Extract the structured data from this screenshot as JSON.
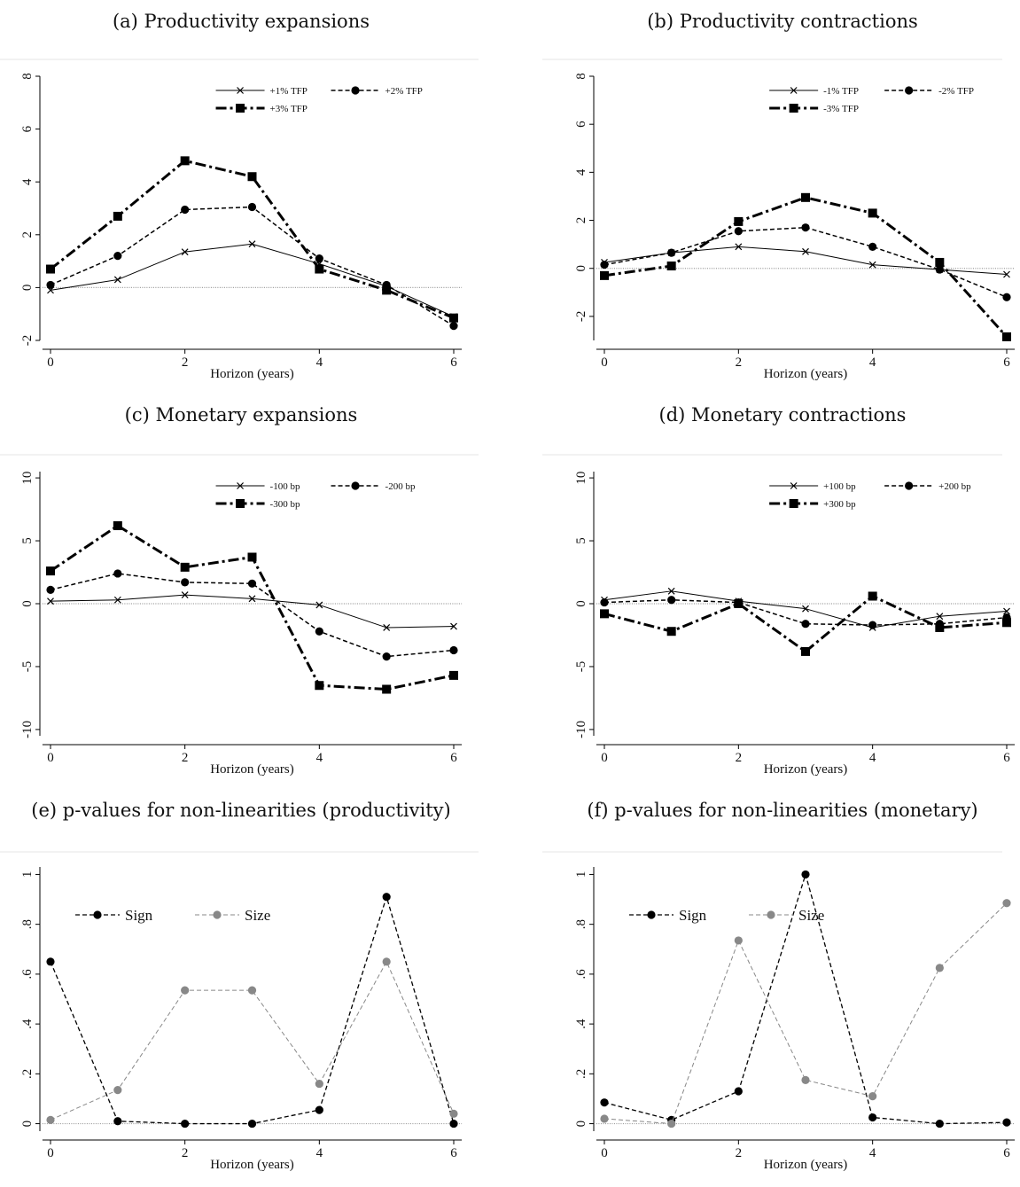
{
  "figure": {
    "panels": [
      {
        "label": "(a) Productivity expansions"
      },
      {
        "label": "(b) Productivity contractions"
      },
      {
        "label": "(c) Monetary expansions"
      },
      {
        "label": "(d) Monetary contractions"
      },
      {
        "label": "(e) p-values for non-linearities (productivity)"
      },
      {
        "label": "(f) p-values for non-linearities (monetary)"
      }
    ]
  },
  "chart_data": [
    {
      "type": "line",
      "title": "(a) Productivity expansions",
      "xlabel": "Horizon (years)",
      "ylabel": "",
      "x": [
        0,
        1,
        2,
        3,
        4,
        5,
        6
      ],
      "xlim": [
        0,
        6
      ],
      "ylim": [
        -2,
        8
      ],
      "xticks": [
        0,
        2,
        4,
        6
      ],
      "yticks": [
        -2,
        0,
        2,
        4,
        6,
        8
      ],
      "ytick_labels": [
        "-2",
        "0",
        "2",
        "4",
        "6",
        "8"
      ],
      "grid": false,
      "zero_line": true,
      "legend": "top-right",
      "series": [
        {
          "name": "+1% TFP",
          "values": [
            -0.1,
            0.3,
            1.35,
            1.65,
            0.9,
            0.05,
            -1.1
          ],
          "style": "thin-x",
          "color": "#000000"
        },
        {
          "name": "+2% TFP",
          "values": [
            0.1,
            1.2,
            2.95,
            3.05,
            1.1,
            0.1,
            -1.45
          ],
          "style": "dash-circle",
          "color": "#000000"
        },
        {
          "name": "+3% TFP",
          "values": [
            0.7,
            2.7,
            4.8,
            4.2,
            0.7,
            -0.1,
            -1.15
          ],
          "style": "thick-square",
          "color": "#000000"
        }
      ]
    },
    {
      "type": "line",
      "title": "(b) Productivity contractions",
      "xlabel": "Horizon (years)",
      "ylabel": "",
      "x": [
        0,
        1,
        2,
        3,
        4,
        5,
        6
      ],
      "xlim": [
        0,
        6
      ],
      "ylim": [
        -3,
        8
      ],
      "xticks": [
        0,
        2,
        4,
        6
      ],
      "yticks": [
        -2,
        0,
        2,
        4,
        6,
        8
      ],
      "ytick_labels": [
        "-2",
        "0",
        "2",
        "4",
        "6",
        "8"
      ],
      "grid": false,
      "zero_line": true,
      "legend": "top-right",
      "series": [
        {
          "name": "-1% TFP",
          "values": [
            0.25,
            0.65,
            0.9,
            0.7,
            0.15,
            -0.05,
            -0.25
          ],
          "style": "thin-x",
          "color": "#000000"
        },
        {
          "name": "-2% TFP",
          "values": [
            0.15,
            0.65,
            1.55,
            1.7,
            0.9,
            -0.05,
            -1.2
          ],
          "style": "dash-circle",
          "color": "#000000"
        },
        {
          "name": "-3% TFP",
          "values": [
            -0.3,
            0.1,
            1.95,
            2.95,
            2.3,
            0.25,
            -2.85
          ],
          "style": "thick-square",
          "color": "#000000"
        }
      ]
    },
    {
      "type": "line",
      "title": "(c) Monetary expansions",
      "xlabel": "Horizon (years)",
      "ylabel": "",
      "x": [
        0,
        1,
        2,
        3,
        4,
        5,
        6
      ],
      "xlim": [
        0,
        6
      ],
      "ylim": [
        -10.5,
        10.5
      ],
      "xticks": [
        0,
        2,
        4,
        6
      ],
      "yticks": [
        -10,
        -5,
        0,
        5,
        10
      ],
      "ytick_labels": [
        "-10",
        "-5",
        "0",
        "5",
        "10"
      ],
      "grid": false,
      "zero_line": true,
      "legend": "top-right",
      "series": [
        {
          "name": "-100 bp",
          "values": [
            0.2,
            0.3,
            0.7,
            0.4,
            -0.1,
            -1.9,
            -1.8
          ],
          "style": "thin-x",
          "color": "#000000"
        },
        {
          "name": "-200 bp",
          "values": [
            1.1,
            2.4,
            1.7,
            1.6,
            -2.2,
            -4.2,
            -3.7
          ],
          "style": "dash-circle",
          "color": "#000000"
        },
        {
          "name": "-300 bp",
          "values": [
            2.6,
            6.2,
            2.9,
            3.7,
            -6.5,
            -6.8,
            -5.7
          ],
          "style": "thick-square",
          "color": "#000000"
        }
      ]
    },
    {
      "type": "line",
      "title": "(d) Monetary contractions",
      "xlabel": "Horizon (years)",
      "ylabel": "",
      "x": [
        0,
        1,
        2,
        3,
        4,
        5,
        6
      ],
      "xlim": [
        0,
        6
      ],
      "ylim": [
        -10.5,
        10.5
      ],
      "xticks": [
        0,
        2,
        4,
        6
      ],
      "yticks": [
        -10,
        -5,
        0,
        5,
        10
      ],
      "ytick_labels": [
        "-10",
        "-5",
        "0",
        "5",
        "10"
      ],
      "grid": false,
      "zero_line": true,
      "legend": "top-right",
      "series": [
        {
          "name": "+100 bp",
          "values": [
            0.3,
            1.0,
            0.2,
            -0.4,
            -1.9,
            -1.0,
            -0.6
          ],
          "style": "thin-x",
          "color": "#000000"
        },
        {
          "name": "+200 bp",
          "values": [
            0.1,
            0.3,
            0.1,
            -1.6,
            -1.7,
            -1.6,
            -1.1
          ],
          "style": "dash-circle",
          "color": "#000000"
        },
        {
          "name": "+300 bp",
          "values": [
            -0.8,
            -2.2,
            0.0,
            -3.8,
            0.6,
            -1.9,
            -1.5
          ],
          "style": "thick-square",
          "color": "#000000"
        }
      ]
    },
    {
      "type": "line",
      "title": "(e) p-values for non-linearities (productivity)",
      "xlabel": "Horizon (years)",
      "ylabel": "",
      "x": [
        0,
        1,
        2,
        3,
        4,
        5,
        6
      ],
      "xlim": [
        0,
        6
      ],
      "ylim": [
        -0.03,
        1.03
      ],
      "xticks": [
        0,
        2,
        4,
        6
      ],
      "yticks": [
        0,
        0.2,
        0.4,
        0.6,
        0.8,
        1
      ],
      "ytick_labels": [
        "0",
        ".2",
        ".4",
        ".6",
        ".8",
        "1"
      ],
      "grid": false,
      "zero_line": true,
      "legend": "top-left",
      "series": [
        {
          "name": "Sign",
          "values": [
            0.65,
            0.01,
            0.0,
            0.0,
            0.055,
            0.91,
            0.0
          ],
          "style": "pval-black",
          "color": "#000000"
        },
        {
          "name": "Size",
          "values": [
            0.015,
            0.135,
            0.535,
            0.535,
            0.16,
            0.65,
            0.04
          ],
          "style": "pval-gray",
          "color": "#888888"
        }
      ]
    },
    {
      "type": "line",
      "title": "(f) p-values for non-linearities (monetary)",
      "xlabel": "Horizon (years)",
      "ylabel": "",
      "x": [
        0,
        1,
        2,
        3,
        4,
        5,
        6
      ],
      "xlim": [
        0,
        6
      ],
      "ylim": [
        -0.03,
        1.03
      ],
      "xticks": [
        0,
        2,
        4,
        6
      ],
      "yticks": [
        0,
        0.2,
        0.4,
        0.6,
        0.8,
        1
      ],
      "ytick_labels": [
        "0",
        ".2",
        ".4",
        ".6",
        ".8",
        "1"
      ],
      "grid": false,
      "zero_line": true,
      "legend": "top-left",
      "series": [
        {
          "name": "Sign",
          "values": [
            0.085,
            0.015,
            0.13,
            1.0,
            0.025,
            0.0,
            0.005
          ],
          "style": "pval-black",
          "color": "#000000"
        },
        {
          "name": "Size",
          "values": [
            0.02,
            0.0,
            0.735,
            0.175,
            0.11,
            0.625,
            0.885
          ],
          "style": "pval-gray",
          "color": "#888888"
        }
      ]
    }
  ]
}
